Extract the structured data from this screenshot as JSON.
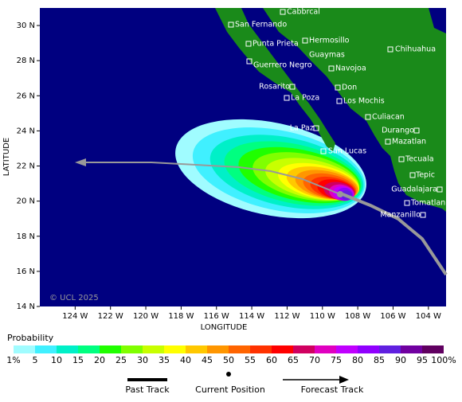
{
  "map": {
    "xlabel": "LONGITUDE",
    "ylabel": "LATITUDE",
    "copyright": "© UCL 2025",
    "xlim": [
      -126,
      -103
    ],
    "ylim": [
      14,
      31
    ],
    "xticks": [
      {
        "value": -124,
        "label": "124 W"
      },
      {
        "value": -122,
        "label": "122 W"
      },
      {
        "value": -120,
        "label": "120 W"
      },
      {
        "value": -118,
        "label": "118 W"
      },
      {
        "value": -116,
        "label": "116 W"
      },
      {
        "value": -114,
        "label": "114 W"
      },
      {
        "value": -112,
        "label": "112 W"
      },
      {
        "value": -110,
        "label": "110 W"
      },
      {
        "value": -108,
        "label": "108 W"
      },
      {
        "value": -106,
        "label": "106 W"
      },
      {
        "value": -104,
        "label": "104 W"
      }
    ],
    "yticks": [
      {
        "value": 14,
        "label": "14 N"
      },
      {
        "value": 16,
        "label": "16 N"
      },
      {
        "value": 18,
        "label": "18 N"
      },
      {
        "value": 20,
        "label": "20 N"
      },
      {
        "value": 22,
        "label": "22 N"
      },
      {
        "value": 24,
        "label": "24 N"
      },
      {
        "value": 26,
        "label": "26 N"
      },
      {
        "value": 28,
        "label": "28 N"
      },
      {
        "value": 30,
        "label": "30 N"
      }
    ],
    "places": [
      "Cabbrcal",
      "San Fernando",
      "Punta Prieta",
      "Hermosillo",
      "Guaymas",
      "Chihuahua",
      "Guerrero Negro",
      "Navojoa",
      "Rosarito",
      "Don",
      "La Poza",
      "Los Mochis",
      "Culiacan",
      "La Paz",
      "Durango",
      "Mazatlan",
      "San Lucas",
      "Tecuala",
      "Tepic",
      "Guadalajara",
      "Tomatlan",
      "Manzanillo"
    ]
  },
  "legend": {
    "title": "Probability",
    "labels": [
      "1%",
      "5",
      "10",
      "15",
      "20",
      "25",
      "30",
      "35",
      "40",
      "45",
      "50",
      "55",
      "60",
      "65",
      "70",
      "75",
      "80",
      "85",
      "90",
      "95",
      "100%"
    ],
    "colors": [
      "#a0fcff",
      "#40f0ff",
      "#00f0c8",
      "#00ff80",
      "#20ff00",
      "#80ff00",
      "#c8ff00",
      "#ffff00",
      "#ffc800",
      "#ff9600",
      "#ff6400",
      "#ff3200",
      "#ff0000",
      "#d00060",
      "#e000c0",
      "#c000ff",
      "#9000ff",
      "#6020e0",
      "#7000a0",
      "#600060"
    ],
    "past": "Past Track",
    "current": "Current Position",
    "forecast": "Forecast Track"
  }
}
